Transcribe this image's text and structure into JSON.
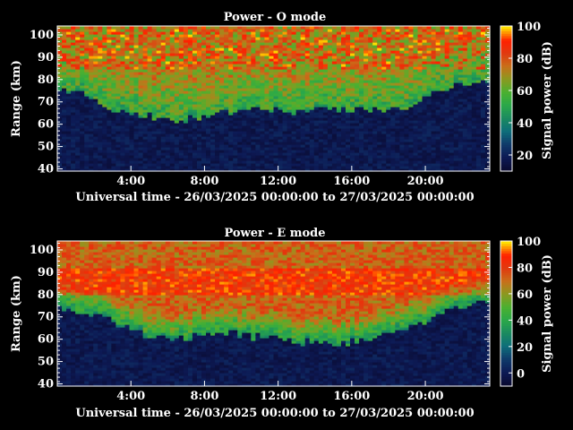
{
  "chart_data": [
    {
      "type": "heatmap",
      "title": "Power - O mode",
      "xlabel": "Universal time - 26/03/2025 00:00:00 to 27/03/2025 00:00:00",
      "ylabel": "Range (km)",
      "colorbar_label": "Signal power (dB)",
      "x_ticks": [
        "4:00",
        "8:00",
        "12:00",
        "16:00",
        "20:00"
      ],
      "x_tick_hours": [
        4,
        8,
        12,
        16,
        20
      ],
      "xlim_hours": [
        0,
        23.5
      ],
      "y_ticks": [
        40,
        50,
        60,
        70,
        80,
        90,
        100
      ],
      "ylim": [
        39,
        104
      ],
      "cbar_ticks": [
        20,
        40,
        60,
        80,
        100
      ],
      "cbar_range": [
        10,
        100
      ],
      "boundary_km": [
        [
          0,
          74
        ],
        [
          1,
          76
        ],
        [
          2,
          72
        ],
        [
          3,
          66
        ],
        [
          4,
          65
        ],
        [
          5,
          64
        ],
        [
          6,
          62
        ],
        [
          7,
          62
        ],
        [
          8,
          63
        ],
        [
          9,
          65
        ],
        [
          10,
          66
        ],
        [
          11,
          67
        ],
        [
          12,
          66
        ],
        [
          13,
          65
        ],
        [
          14,
          67
        ],
        [
          15,
          67
        ],
        [
          16,
          67
        ],
        [
          17,
          67
        ],
        [
          18,
          66
        ],
        [
          19,
          68
        ],
        [
          20,
          73
        ],
        [
          21,
          76
        ],
        [
          22,
          78
        ],
        [
          23.5,
          80
        ]
      ]
    },
    {
      "type": "heatmap",
      "title": "Power - E mode",
      "xlabel": "Universal time - 26/03/2025 00:00:00 to 27/03/2025 00:00:00",
      "ylabel": "Range (km)",
      "colorbar_label": "Signal power (dB)",
      "x_ticks": [
        "4:00",
        "8:00",
        "12:00",
        "16:00",
        "20:00"
      ],
      "x_tick_hours": [
        4,
        8,
        12,
        16,
        20
      ],
      "xlim_hours": [
        0,
        23.5
      ],
      "y_ticks": [
        40,
        50,
        60,
        70,
        80,
        90,
        100
      ],
      "ylim": [
        39,
        104
      ],
      "cbar_ticks": [
        0,
        20,
        40,
        60,
        80,
        100
      ],
      "cbar_range": [
        -10,
        100
      ],
      "boundary_km": [
        [
          0,
          75
        ],
        [
          1,
          73
        ],
        [
          2,
          72
        ],
        [
          3,
          68
        ],
        [
          4,
          64
        ],
        [
          5,
          62
        ],
        [
          6,
          60
        ],
        [
          7,
          61
        ],
        [
          8,
          62
        ],
        [
          9,
          63
        ],
        [
          10,
          62
        ],
        [
          11,
          61
        ],
        [
          12,
          60
        ],
        [
          13,
          59
        ],
        [
          14,
          59
        ],
        [
          15,
          59
        ],
        [
          16,
          59
        ],
        [
          17,
          60
        ],
        [
          18,
          62
        ],
        [
          19,
          65
        ],
        [
          20,
          68
        ],
        [
          21,
          72
        ],
        [
          22,
          75
        ],
        [
          23.5,
          78
        ]
      ]
    }
  ],
  "colorscale": [
    "#0a0a30",
    "#0d1a55",
    "#0f3a6a",
    "#0e6e7a",
    "#1a8a60",
    "#2aa84a",
    "#4ab030",
    "#8a9a20",
    "#c8701a",
    "#e03a10",
    "#ff2000",
    "#ffe000"
  ]
}
